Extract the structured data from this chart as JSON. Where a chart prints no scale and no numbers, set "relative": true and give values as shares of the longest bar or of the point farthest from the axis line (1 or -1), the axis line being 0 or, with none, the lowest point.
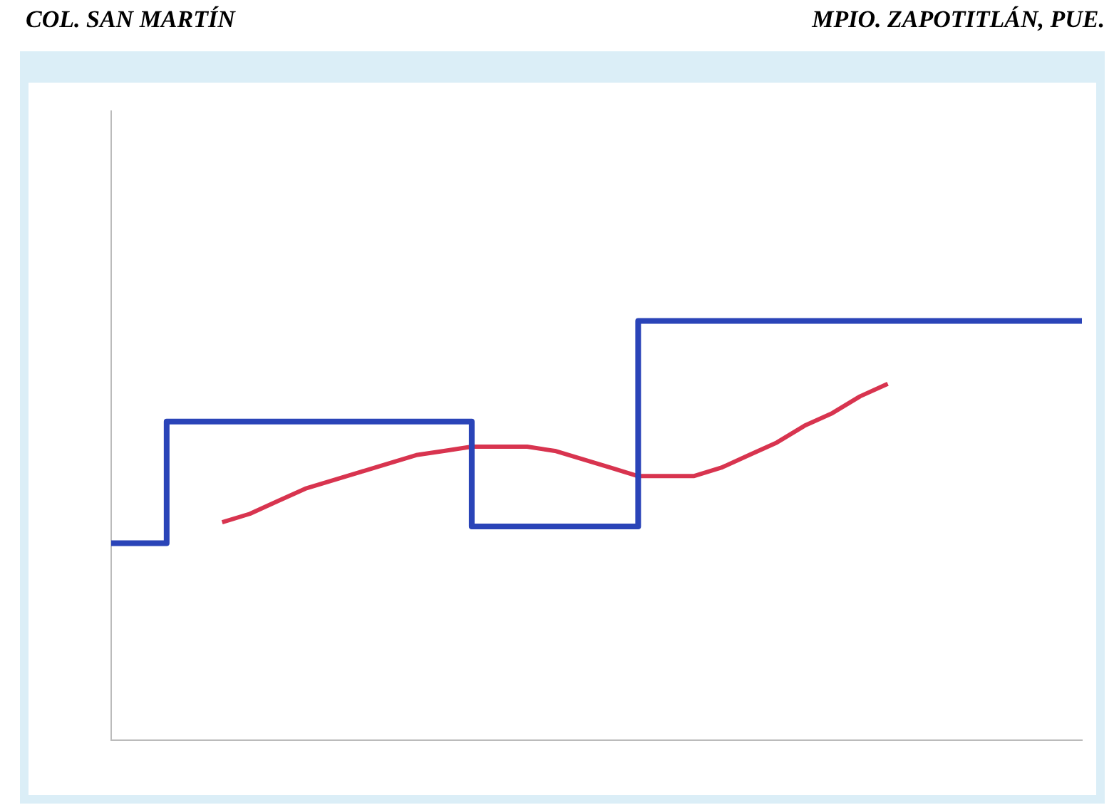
{
  "chart_data": {
    "type": "line",
    "title": "COL.  SAN MARTÍN",
    "subtitle": "MPIO. ZAPOTITLÁN, PUE.",
    "relative": true,
    "legend": false,
    "marker": "none",
    "categories": [
      null,
      null,
      null,
      null,
      null,
      null,
      null,
      null,
      null,
      null,
      null,
      null,
      null,
      null,
      null,
      null,
      null,
      null,
      null,
      null,
      null,
      null,
      null,
      null,
      null,
      null,
      null,
      null,
      null,
      null,
      null,
      null,
      null,
      null,
      null,
      null
    ],
    "series": [
      {
        "type": "step",
        "color": "#2a44b8",
        "values": [
          0.47,
          0.47,
          0.47,
          0.76,
          0.76,
          0.76,
          0.76,
          0.76,
          0.76,
          0.76,
          0.76,
          0.76,
          0.76,
          0.76,
          0.51,
          0.51,
          0.51,
          0.51,
          0.51,
          0.51,
          1,
          1,
          1,
          1,
          1,
          1,
          1,
          1,
          1,
          1,
          1,
          1,
          1,
          1,
          1,
          1
        ]
      },
      {
        "color": "#d8344f",
        "values": [
          null,
          null,
          null,
          null,
          0.52,
          0.54,
          0.57,
          0.6,
          0.62,
          0.64,
          0.66,
          0.68,
          0.69,
          0.7,
          0.7,
          0.7,
          0.69,
          0.67,
          0.65,
          0.63,
          0.63,
          0.63,
          0.65,
          0.68,
          0.71,
          0.75,
          0.78,
          0.82,
          0.85,
          null,
          null,
          null,
          null,
          null,
          null,
          null
        ]
      }
    ]
  }
}
